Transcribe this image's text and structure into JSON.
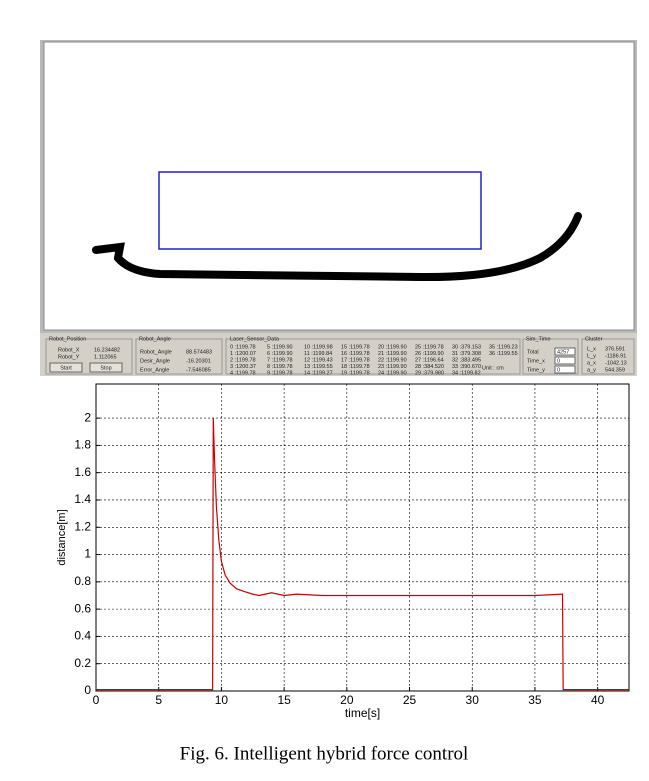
{
  "panel": {
    "robot_position": {
      "title": "Robot_Position",
      "labels": [
        "Robot_X",
        "Robot_Y"
      ],
      "values": [
        "16.234482",
        "1.112065"
      ],
      "buttons": [
        "Start",
        "Stop"
      ]
    },
    "robot_angle": {
      "title": "Robot_Angle",
      "labels": [
        "Robot_Angle",
        "Desir_Angle",
        "Error_Angle"
      ],
      "values": [
        "88.574483",
        "-16.20301",
        "-7.546085"
      ]
    },
    "laser": {
      "title": "Laser_Sensor_Data",
      "entries": [
        "0 :1199.78",
        "1 :1200.07",
        "2 :1199.78",
        "3 :1200.37",
        "4 :1199.78",
        "5 :1199.90",
        "6 :1199.90",
        "7 :1199.78",
        "8 :1199.78",
        "9 :1199.78",
        "10 :1199.98",
        "11 :1199.84",
        "12 :1199.43",
        "13 :1199.55",
        "14 :1199.27",
        "15 :1199.78",
        "16 :1199.78",
        "17 :1199.78",
        "18 :1199.78",
        "19 :1199.78",
        "20 :1199.90",
        "21 :1199.90",
        "22 :1199.90",
        "23 :1199.90",
        "24 :1199.90",
        "25 :1199.78",
        "26 :1199.90",
        "27 :1196.64",
        "28 :384.520",
        "29 :379.980",
        "30 :379.153",
        "31 :379.308",
        "32 :383.495",
        "33 :390.670",
        "34 :1199.82",
        "35 :1199.23",
        "36 :1199.55"
      ],
      "unit": "Unit : cm"
    },
    "sim_time": {
      "title": "Sim_Time",
      "labels": [
        "Total",
        "Time_x",
        "Time_y"
      ],
      "values": [
        "4257",
        "0",
        "0"
      ]
    },
    "cluster": {
      "title": "Cluster",
      "labels": [
        "L_x",
        "L_y",
        "a_x",
        "a_y"
      ],
      "values": [
        "376.591",
        "-1186.91",
        "-1042.13",
        "544.359"
      ]
    }
  },
  "chart_data": {
    "type": "line",
    "xlabel": "time[s]",
    "ylabel": "distance[m]",
    "color": "#cc0000",
    "grid": true,
    "x": [
      0,
      9.3,
      9.35,
      9.45,
      9.6,
      9.8,
      10,
      10.3,
      10.7,
      11.2,
      11.8,
      12.5,
      13,
      13.5,
      14,
      15,
      16,
      18,
      20,
      25,
      30,
      35,
      37.2,
      37.25,
      42.5
    ],
    "values": [
      0.01,
      0.01,
      2.0,
      1.7,
      1.35,
      1.1,
      0.95,
      0.85,
      0.79,
      0.75,
      0.73,
      0.71,
      0.7,
      0.71,
      0.72,
      0.7,
      0.71,
      0.7,
      0.7,
      0.7,
      0.7,
      0.7,
      0.71,
      0.01,
      0.01
    ],
    "xlim": [
      0,
      42.5
    ],
    "ylim": [
      0,
      2.25
    ],
    "xticks": [
      0,
      5,
      10,
      15,
      20,
      25,
      30,
      35,
      40
    ],
    "yticks": [
      0,
      0.2,
      0.4,
      0.6,
      0.8,
      1,
      1.2,
      1.4,
      1.6,
      1.8,
      2
    ]
  },
  "caption": "Fig. 6. Intelligent hybrid force control"
}
